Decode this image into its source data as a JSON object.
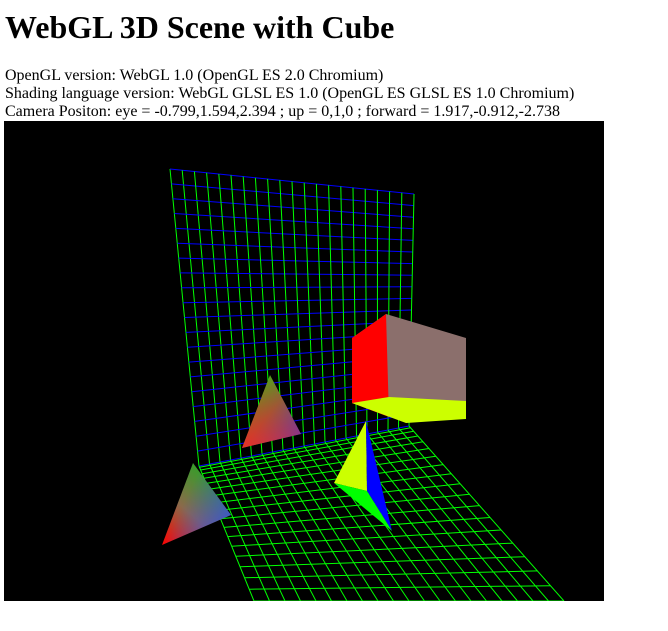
{
  "page": {
    "title": "WebGL 3D Scene with Cube"
  },
  "info": {
    "opengl_version": "OpenGL version: WebGL 1.0 (OpenGL ES 2.0 Chromium)",
    "shading_version": "Shading language version: WebGL GLSL ES 1.0 (OpenGL ES GLSL ES 1.0 Chromium)",
    "camera_position": "Camera Positon: eye = -0.799,1.594,2.394 ; up = 0,1,0 ; forward = 1.917,-0.912,-2.738"
  },
  "scene": {
    "background_color": "#000000",
    "grid_colors": [
      "#00ff00",
      "#0000ff"
    ],
    "cube_colors": {
      "left_face": "#ff0000",
      "front_face": "#8b6f6c",
      "bottom_face": "#ccff00"
    },
    "objects": [
      "grid-wall",
      "grid-floor",
      "cube",
      "triangle-upper",
      "triangle-left",
      "pyramid"
    ]
  }
}
